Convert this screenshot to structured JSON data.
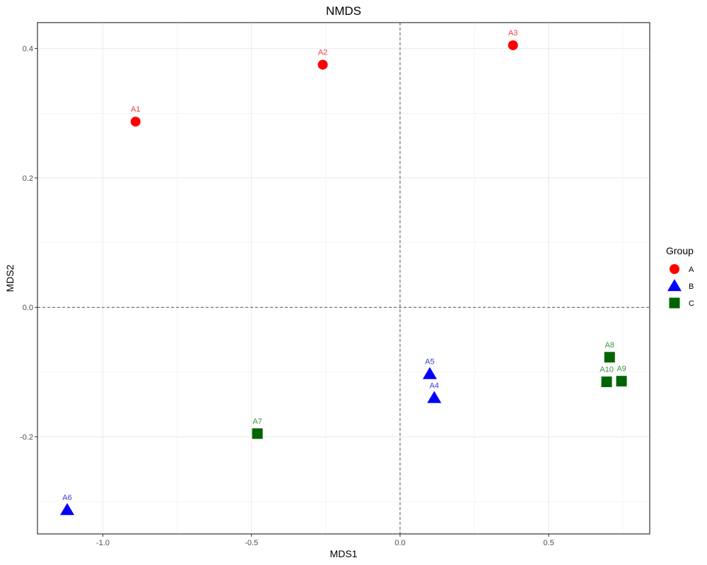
{
  "chart_data": {
    "type": "scatter",
    "title": "NMDS",
    "xlabel": "MDS1",
    "ylabel": "MDS2",
    "xlim": [
      -1.22,
      0.84
    ],
    "ylim": [
      -0.35,
      0.44
    ],
    "xticks": [
      -1.0,
      -0.5,
      0.0,
      0.5
    ],
    "xtick_labels": [
      "-1.0",
      "-0.5",
      "0.0",
      "0.5"
    ],
    "yticks": [
      -0.2,
      0.0,
      0.2,
      0.4
    ],
    "ytick_labels": [
      "-0.2",
      "0.0",
      "0.2",
      "0.4"
    ],
    "grid": true,
    "reference_lines": {
      "x": 0,
      "y": 0,
      "style": "dashed"
    },
    "legend": {
      "title": "Group",
      "position": "right",
      "entries": [
        {
          "label": "A",
          "shape": "circle",
          "color": "#ff0000"
        },
        {
          "label": "B",
          "shape": "triangle",
          "color": "#0000ff"
        },
        {
          "label": "C",
          "shape": "square",
          "color": "#006400"
        }
      ]
    },
    "label_colors": {
      "A": "#f03c3c",
      "B": "#3c3cd2",
      "C": "#3c963c"
    },
    "series": [
      {
        "name": "A",
        "points": [
          {
            "label": "A1",
            "x": -0.89,
            "y": 0.287
          },
          {
            "label": "A2",
            "x": -0.26,
            "y": 0.375
          },
          {
            "label": "A3",
            "x": 0.38,
            "y": 0.405
          }
        ]
      },
      {
        "name": "B",
        "points": [
          {
            "label": "A4",
            "x": 0.115,
            "y": -0.14
          },
          {
            "label": "A5",
            "x": 0.1,
            "y": -0.103
          },
          {
            "label": "A6",
            "x": -1.12,
            "y": -0.313
          }
        ]
      },
      {
        "name": "C",
        "points": [
          {
            "label": "A7",
            "x": -0.48,
            "y": -0.195
          },
          {
            "label": "A8",
            "x": 0.705,
            "y": -0.077
          },
          {
            "label": "A9",
            "x": 0.745,
            "y": -0.114
          },
          {
            "label": "A10",
            "x": 0.695,
            "y": -0.115
          }
        ]
      }
    ]
  }
}
